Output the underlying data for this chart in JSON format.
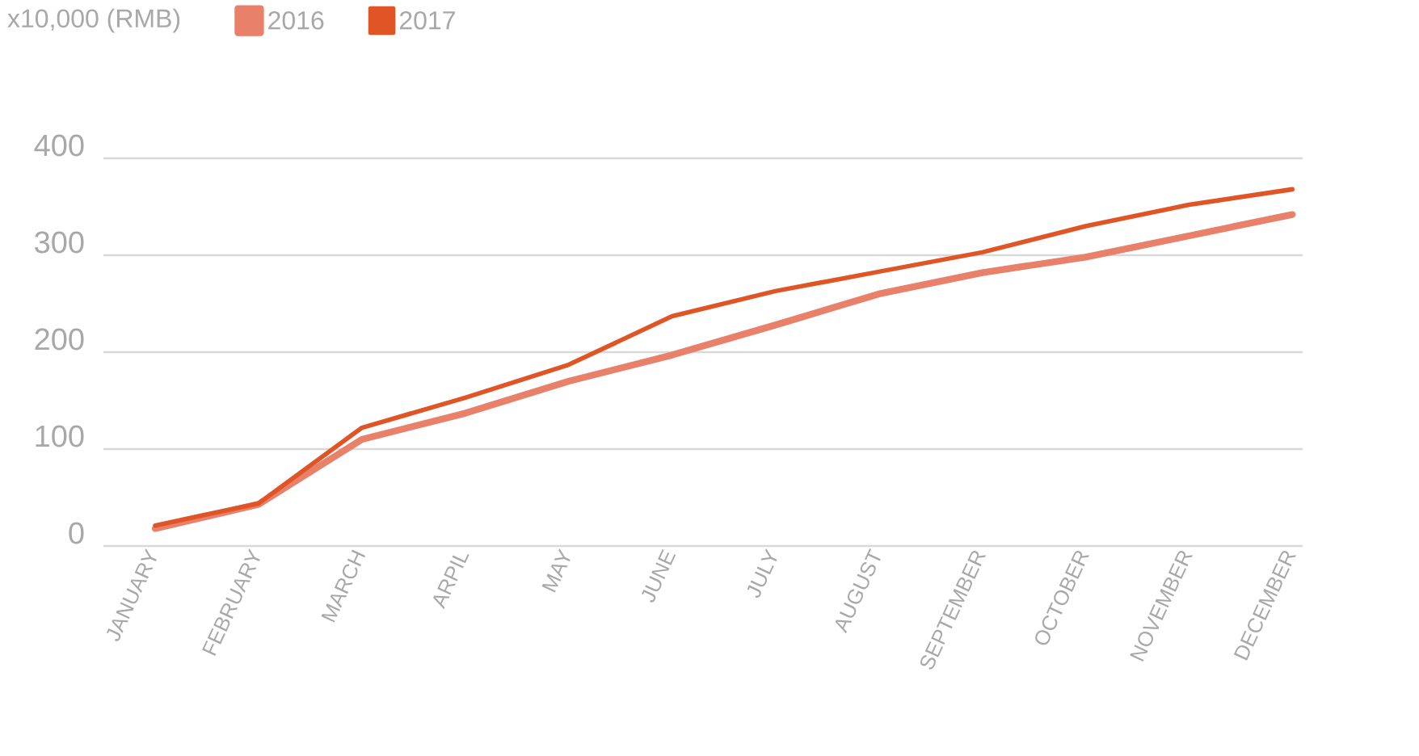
{
  "chart_data": {
    "type": "line",
    "ylabel": "x10,000 (RMB)",
    "categories": [
      "JANUARY",
      "FEBRUARY",
      "MARCH",
      "ARPIL",
      "MAY",
      "JUNE",
      "JULY",
      "AUGUST",
      "SEPTEMBER",
      "OCTOBER",
      "NOVEMBER",
      "DECEMBER"
    ],
    "series": [
      {
        "name": "2016",
        "color": "#e8806a",
        "values": [
          18,
          43,
          110,
          137,
          170,
          197,
          228,
          260,
          282,
          298,
          320,
          342
        ]
      },
      {
        "name": "2017",
        "color": "#e05526",
        "values": [
          21,
          44,
          122,
          153,
          187,
          237,
          263,
          283,
          303,
          330,
          352,
          368
        ]
      }
    ],
    "ylim": [
      0,
      400
    ],
    "yticks": [
      0,
      100,
      200,
      300,
      400
    ],
    "grid": "y",
    "legend": "top left",
    "marker": "none",
    "line_style": "solid"
  }
}
